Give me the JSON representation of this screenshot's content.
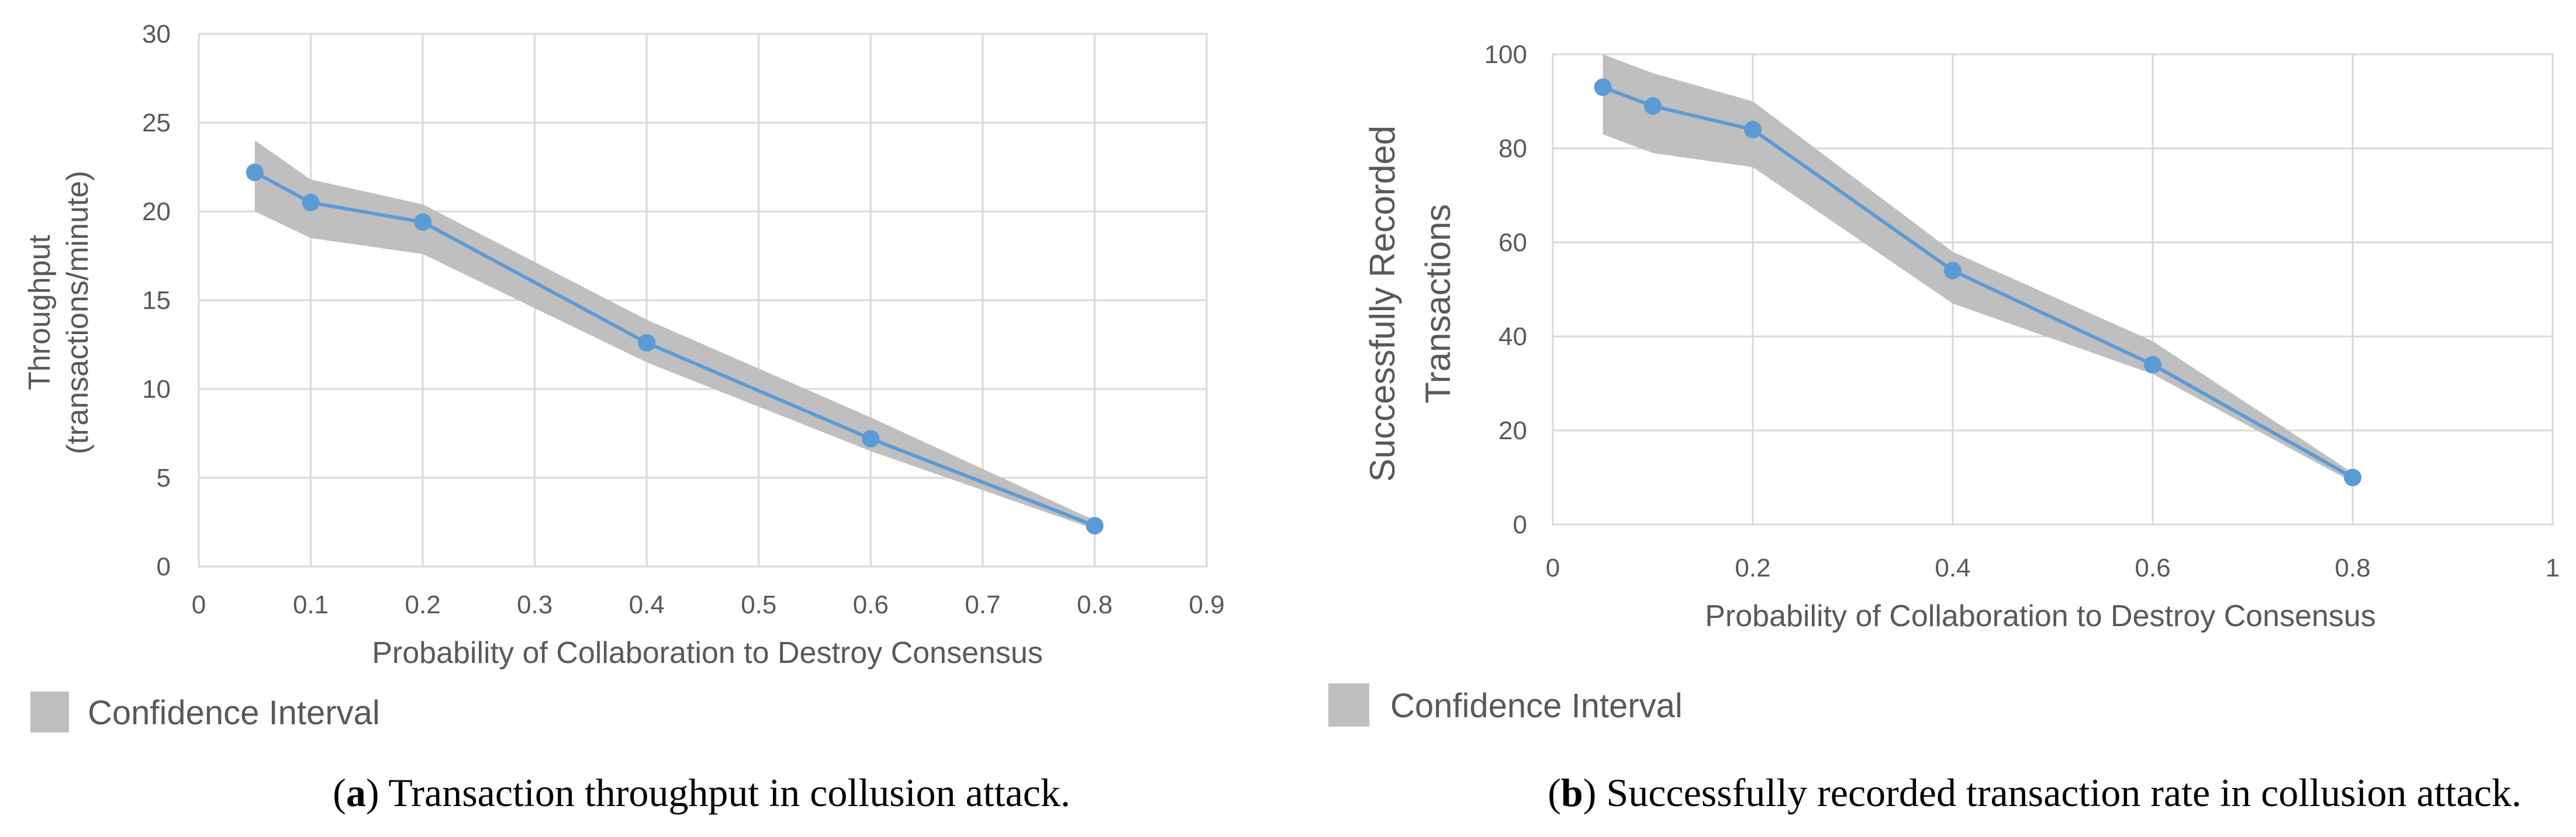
{
  "colors": {
    "line": "#5b9bd5",
    "band": "#bfbfbf",
    "legend_swatch": "#bfbfbf"
  },
  "chart_data": [
    {
      "type": "line",
      "panel": "a",
      "title": "",
      "xlabel": "Probability of Collaboration to Destroy Consensus",
      "ylabel_lines": [
        "Throughput",
        "(transactions/minute)"
      ],
      "xlim": [
        0,
        0.9
      ],
      "ylim": [
        0,
        30
      ],
      "xticks": [
        0,
        0.1,
        0.2,
        0.3,
        0.4,
        0.5,
        0.6,
        0.7,
        0.8,
        0.9
      ],
      "xtick_labels": [
        "0",
        "0.1",
        "0.2",
        "0.3",
        "0.4",
        "0.5",
        "0.6",
        "0.7",
        "0.8",
        "0.9"
      ],
      "yticks": [
        0,
        5,
        10,
        15,
        20,
        25,
        30
      ],
      "ytick_labels": [
        "0",
        "5",
        "10",
        "15",
        "20",
        "25",
        "30"
      ],
      "grid": true,
      "series": [
        {
          "name": "Throughput",
          "x": [
            0.05,
            0.1,
            0.2,
            0.4,
            0.6,
            0.8
          ],
          "y": [
            22.2,
            20.5,
            19.4,
            12.6,
            7.2,
            2.3
          ]
        }
      ],
      "confidence_interval": {
        "x": [
          0.05,
          0.1,
          0.2,
          0.4,
          0.6,
          0.8
        ],
        "upper": [
          24.0,
          21.8,
          20.4,
          13.9,
          8.4,
          2.6
        ],
        "lower": [
          20.0,
          18.5,
          17.6,
          11.5,
          6.5,
          2.1
        ]
      },
      "legend": "Confidence Interval",
      "caption_label": "a",
      "caption_text": ") Transaction throughput in collusion attack."
    },
    {
      "type": "line",
      "panel": "b",
      "title": "",
      "xlabel": "Probability of Collaboration to Destroy Consensus",
      "ylabel_lines": [
        "Successfully Recorded",
        "Transactions"
      ],
      "xlim": [
        0,
        1
      ],
      "ylim": [
        0,
        100
      ],
      "xticks": [
        0,
        0.2,
        0.4,
        0.6,
        0.8,
        1
      ],
      "xtick_labels": [
        "0",
        "0.2",
        "0.4",
        "0.6",
        "0.8",
        "1"
      ],
      "yticks": [
        0,
        20,
        40,
        60,
        80,
        100
      ],
      "ytick_labels": [
        "0",
        "20",
        "40",
        "60",
        "80",
        "100"
      ],
      "grid": true,
      "series": [
        {
          "name": "Successfully Recorded Transactions",
          "x": [
            0.05,
            0.1,
            0.2,
            0.4,
            0.6,
            0.8
          ],
          "y": [
            93,
            89,
            84,
            54,
            34,
            10
          ]
        }
      ],
      "confidence_interval": {
        "x": [
          0.05,
          0.1,
          0.2,
          0.4,
          0.6,
          0.8
        ],
        "upper": [
          100,
          96,
          90,
          58,
          39,
          11
        ],
        "lower": [
          83,
          79,
          76,
          47,
          32,
          9
        ]
      },
      "legend": "Confidence Interval",
      "caption_label": "b",
      "caption_text": ") Successfully recorded transaction rate in collusion attack."
    }
  ]
}
